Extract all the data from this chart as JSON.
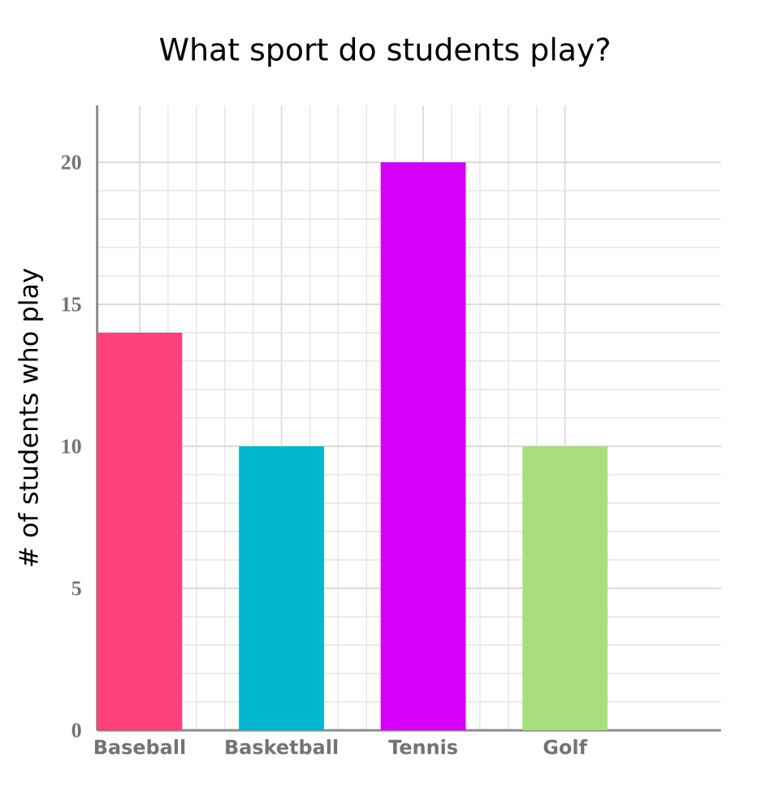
{
  "chart_data": {
    "type": "bar",
    "title": "What sport do students play?",
    "ylabel": "# of students who play",
    "categories": [
      "Baseball",
      "Basketball",
      "Tennis",
      "Golf"
    ],
    "values": [
      14,
      10,
      20,
      10
    ],
    "colors": [
      "#fe417a",
      "#00b7d0",
      "#d400f8",
      "#a8df7c"
    ],
    "ylim": [
      0,
      22
    ],
    "yticks": [
      0,
      5,
      10,
      15,
      20
    ],
    "grid": true
  }
}
